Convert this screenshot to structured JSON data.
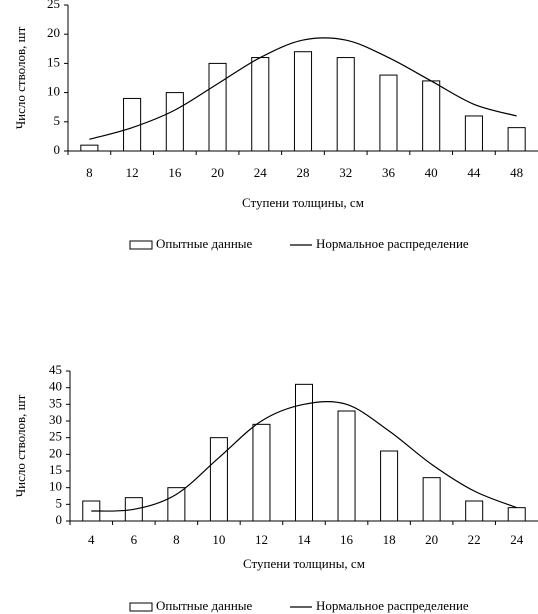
{
  "chart_data": [
    {
      "type": "bar_line",
      "y_label": "Число стволов, шт",
      "x_label": "Ступени толщины, см",
      "categories": [
        "8",
        "12",
        "16",
        "20",
        "24",
        "28",
        "32",
        "36",
        "40",
        "44",
        "48"
      ],
      "series": [
        {
          "name": "Опытные данные",
          "type": "bar",
          "color": "#ffffff",
          "values": [
            1,
            9,
            10,
            15,
            16,
            17,
            16,
            13,
            12,
            6,
            4
          ]
        },
        {
          "name": "Нормальное распределение",
          "type": "line",
          "color": "#000000",
          "values": [
            2,
            4,
            7,
            11.5,
            16,
            19,
            19,
            16,
            12,
            8,
            6
          ]
        }
      ],
      "ylim": [
        0,
        25
      ],
      "yticks": [
        0,
        5,
        10,
        15,
        20,
        25
      ]
    },
    {
      "type": "bar_line",
      "y_label": "Число стволов, шт",
      "x_label": "Ступени толщины, см",
      "categories": [
        "4",
        "6",
        "8",
        "10",
        "12",
        "14",
        "16",
        "18",
        "20",
        "22",
        "24"
      ],
      "series": [
        {
          "name": "Опытные данные",
          "type": "bar",
          "color": "#ffffff",
          "values": [
            6,
            7,
            10,
            25,
            29,
            41,
            33,
            21,
            13,
            6,
            4
          ]
        },
        {
          "name": "Нормальное распределение",
          "type": "line",
          "color": "#000000",
          "values": [
            3,
            3.5,
            8,
            19,
            30,
            35,
            35,
            27,
            17,
            9,
            4
          ]
        }
      ],
      "ylim": [
        0,
        45
      ],
      "yticks": [
        0,
        5,
        10,
        15,
        20,
        25,
        30,
        35,
        40,
        45
      ]
    }
  ]
}
